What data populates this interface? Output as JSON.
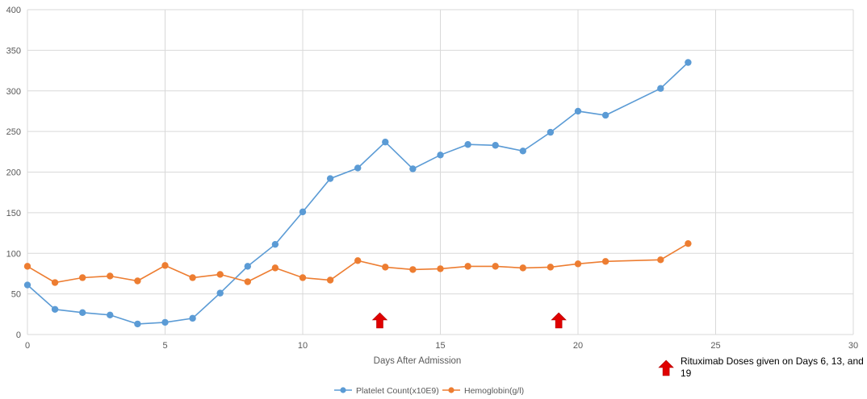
{
  "chart_data": {
    "type": "line",
    "xlabel": "Days After Admission",
    "ylabel": "",
    "xlim": [
      0,
      30
    ],
    "ylim": [
      0,
      400
    ],
    "xticks": [
      0,
      5,
      10,
      15,
      20,
      25,
      30
    ],
    "yticks": [
      0,
      50,
      100,
      150,
      200,
      250,
      300,
      350,
      400
    ],
    "grid": true,
    "legend_position": "bottom-center",
    "series": [
      {
        "name": "Platelet Count(x10E9)",
        "color": "#5B9BD5",
        "x": [
          0,
          1,
          2,
          3,
          4,
          5,
          6,
          7,
          8,
          9,
          10,
          11,
          12,
          13,
          14,
          15,
          16,
          17,
          18,
          19,
          20,
          21,
          23,
          24
        ],
        "values": [
          61,
          31,
          27,
          24,
          13,
          15,
          20,
          51,
          84,
          111,
          151,
          192,
          205,
          237,
          204,
          221,
          234,
          233,
          226,
          249,
          275,
          270,
          303,
          335
        ]
      },
      {
        "name": "Hemoglobin(g/l)",
        "color": "#ED7D31",
        "x": [
          0,
          1,
          2,
          3,
          4,
          5,
          6,
          7,
          8,
          9,
          10,
          11,
          12,
          13,
          14,
          15,
          16,
          17,
          18,
          19,
          20,
          21,
          23,
          24
        ],
        "values": [
          84,
          64,
          70,
          72,
          66,
          85,
          70,
          74,
          65,
          82,
          70,
          67,
          91,
          83,
          80,
          81,
          84,
          84,
          82,
          83,
          87,
          90,
          92,
          112
        ]
      }
    ],
    "annotations": [
      {
        "kind": "arrow",
        "x": 12.8,
        "color": "#E00000"
      },
      {
        "kind": "arrow",
        "x": 19.3,
        "color": "#E00000"
      },
      {
        "kind": "arrow",
        "x": 23.2,
        "color": "#E00000"
      },
      {
        "kind": "text",
        "text": "Rituximab Doses given on Days 6, 13, and 19"
      }
    ]
  }
}
